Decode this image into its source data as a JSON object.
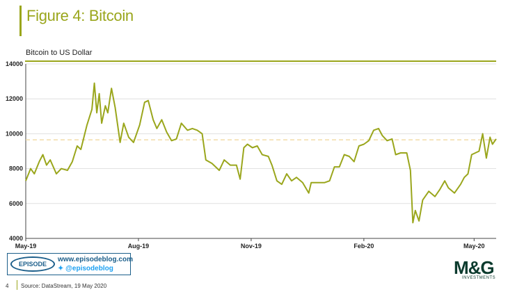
{
  "header": {
    "title": "Figure 4: Bitcoin",
    "subtitle": "Bitcoin to US Dollar"
  },
  "footer": {
    "page_number": "4",
    "source": "Source: DataStream, 19 May 2020"
  },
  "branding": {
    "episode_label": "EPISODE",
    "episode_url": "www.episodeblog.com",
    "episode_twitter": "@episodeblog",
    "mg_logo": "M&G",
    "mg_sub": "INVESTMENTS"
  },
  "colors": {
    "line": "#9aa61c",
    "accent": "#9aa61c",
    "reference": "#f0d9a0"
  },
  "chart_data": {
    "type": "line",
    "title": "Figure 4: Bitcoin",
    "subtitle": "Bitcoin to US Dollar",
    "xlabel": "",
    "ylabel": "",
    "ylim": [
      4000,
      14000
    ],
    "xlim": [
      "2019-05-01",
      "2020-05-19"
    ],
    "yticks": [
      4000,
      6000,
      8000,
      10000,
      12000,
      14000
    ],
    "ytick_labels": [
      "4000",
      "6000",
      "8000",
      "10000",
      "12000",
      "14000"
    ],
    "xticks": [
      "2019-05-01",
      "2019-08-01",
      "2019-11-01",
      "2020-02-01",
      "2020-05-01"
    ],
    "xtick_labels": [
      "May-19",
      "Aug-19",
      "Nov-19",
      "Feb-20",
      "May-20"
    ],
    "grid": "horizontal",
    "reference_line": 9650,
    "series": [
      {
        "values": [
          [
            "2019-05-01",
            7300
          ],
          [
            "2019-05-05",
            8000
          ],
          [
            "2019-05-08",
            7700
          ],
          [
            "2019-05-12",
            8400
          ],
          [
            "2019-05-15",
            8800
          ],
          [
            "2019-05-18",
            8200
          ],
          [
            "2019-05-21",
            8500
          ],
          [
            "2019-05-26",
            7700
          ],
          [
            "2019-05-30",
            8000
          ],
          [
            "2019-06-04",
            7900
          ],
          [
            "2019-06-08",
            8400
          ],
          [
            "2019-06-12",
            9300
          ],
          [
            "2019-06-15",
            9100
          ],
          [
            "2019-06-20",
            10500
          ],
          [
            "2019-06-24",
            11400
          ],
          [
            "2019-06-26",
            12900
          ],
          [
            "2019-06-28",
            11200
          ],
          [
            "2019-06-30",
            12300
          ],
          [
            "2019-07-02",
            10600
          ],
          [
            "2019-07-05",
            11600
          ],
          [
            "2019-07-07",
            11200
          ],
          [
            "2019-07-10",
            12600
          ],
          [
            "2019-07-13",
            11500
          ],
          [
            "2019-07-17",
            9500
          ],
          [
            "2019-07-20",
            10600
          ],
          [
            "2019-07-24",
            9800
          ],
          [
            "2019-07-28",
            9500
          ],
          [
            "2019-08-02",
            10500
          ],
          [
            "2019-08-06",
            11800
          ],
          [
            "2019-08-09",
            11900
          ],
          [
            "2019-08-13",
            10800
          ],
          [
            "2019-08-16",
            10300
          ],
          [
            "2019-08-20",
            10800
          ],
          [
            "2019-08-24",
            10100
          ],
          [
            "2019-08-28",
            9600
          ],
          [
            "2019-09-01",
            9700
          ],
          [
            "2019-09-05",
            10600
          ],
          [
            "2019-09-10",
            10200
          ],
          [
            "2019-09-14",
            10300
          ],
          [
            "2019-09-18",
            10200
          ],
          [
            "2019-09-22",
            10000
          ],
          [
            "2019-09-25",
            8500
          ],
          [
            "2019-09-30",
            8300
          ],
          [
            "2019-10-06",
            7900
          ],
          [
            "2019-10-10",
            8500
          ],
          [
            "2019-10-15",
            8200
          ],
          [
            "2019-10-20",
            8200
          ],
          [
            "2019-10-23",
            7400
          ],
          [
            "2019-10-26",
            9200
          ],
          [
            "2019-10-29",
            9400
          ],
          [
            "2019-11-02",
            9200
          ],
          [
            "2019-11-06",
            9300
          ],
          [
            "2019-11-10",
            8800
          ],
          [
            "2019-11-15",
            8700
          ],
          [
            "2019-11-18",
            8200
          ],
          [
            "2019-11-22",
            7300
          ],
          [
            "2019-11-26",
            7100
          ],
          [
            "2019-11-30",
            7700
          ],
          [
            "2019-12-04",
            7300
          ],
          [
            "2019-12-08",
            7500
          ],
          [
            "2019-12-13",
            7200
          ],
          [
            "2019-12-18",
            6600
          ],
          [
            "2019-12-20",
            7200
          ],
          [
            "2019-12-25",
            7200
          ],
          [
            "2019-12-31",
            7200
          ],
          [
            "2020-01-04",
            7300
          ],
          [
            "2020-01-08",
            8100
          ],
          [
            "2020-01-12",
            8100
          ],
          [
            "2020-01-16",
            8800
          ],
          [
            "2020-01-20",
            8700
          ],
          [
            "2020-01-24",
            8400
          ],
          [
            "2020-01-28",
            9300
          ],
          [
            "2020-02-01",
            9400
          ],
          [
            "2020-02-05",
            9600
          ],
          [
            "2020-02-09",
            10200
          ],
          [
            "2020-02-13",
            10300
          ],
          [
            "2020-02-16",
            9900
          ],
          [
            "2020-02-20",
            9600
          ],
          [
            "2020-02-24",
            9700
          ],
          [
            "2020-02-27",
            8800
          ],
          [
            "2020-03-02",
            8900
          ],
          [
            "2020-03-07",
            8900
          ],
          [
            "2020-03-10",
            7900
          ],
          [
            "2020-03-12",
            4900
          ],
          [
            "2020-03-14",
            5600
          ],
          [
            "2020-03-17",
            5000
          ],
          [
            "2020-03-20",
            6200
          ],
          [
            "2020-03-25",
            6700
          ],
          [
            "2020-03-30",
            6400
          ],
          [
            "2020-04-03",
            6800
          ],
          [
            "2020-04-07",
            7300
          ],
          [
            "2020-04-10",
            6900
          ],
          [
            "2020-04-15",
            6600
          ],
          [
            "2020-04-20",
            7100
          ],
          [
            "2020-04-23",
            7500
          ],
          [
            "2020-04-26",
            7700
          ],
          [
            "2020-04-29",
            8800
          ],
          [
            "2020-05-02",
            8900
          ],
          [
            "2020-05-05",
            9000
          ],
          [
            "2020-05-08",
            10000
          ],
          [
            "2020-05-11",
            8600
          ],
          [
            "2020-05-14",
            9800
          ],
          [
            "2020-05-16",
            9400
          ],
          [
            "2020-05-19",
            9700
          ]
        ]
      }
    ]
  }
}
